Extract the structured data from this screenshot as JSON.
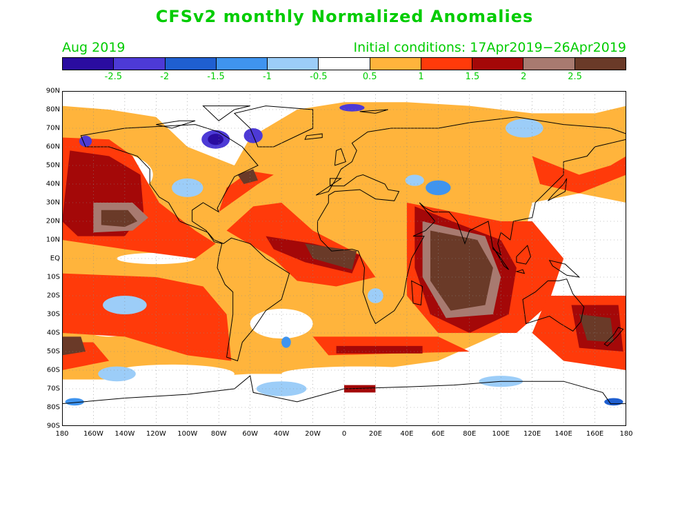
{
  "title": "CFSv2 monthly Normalized Anomalies",
  "month_label": "Aug 2019",
  "init_label": "Initial conditions: 17Apr2019−26Apr2019",
  "colorbar": {
    "colors": [
      "#2a0ca0",
      "#4d3ad6",
      "#1f5fd0",
      "#3f94ef",
      "#9ccdf8",
      "#ffffff",
      "#ffb43c",
      "#ff3a0a",
      "#a40808",
      "#a87a70",
      "#6a3a28"
    ],
    "labels": [
      "-2.5",
      "-2",
      "-1.5",
      "-1",
      "-0.5",
      "0.5",
      "1",
      "1.5",
      "2",
      "2.5"
    ]
  },
  "axes": {
    "lat_labels": [
      "90N",
      "80N",
      "70N",
      "60N",
      "50N",
      "40N",
      "30N",
      "20N",
      "10N",
      "EQ",
      "10S",
      "20S",
      "30S",
      "40S",
      "50S",
      "60S",
      "70S",
      "80S",
      "90S"
    ],
    "lon_labels": [
      "180",
      "160W",
      "140W",
      "120W",
      "100W",
      "80W",
      "60W",
      "40W",
      "20W",
      "0",
      "20E",
      "40E",
      "60E",
      "80E",
      "100E",
      "120E",
      "140E",
      "160E",
      "180"
    ]
  },
  "legend_colors": {
    "land_line": "#000000",
    "grid": "#888888",
    "text": "#00cc00"
  }
}
